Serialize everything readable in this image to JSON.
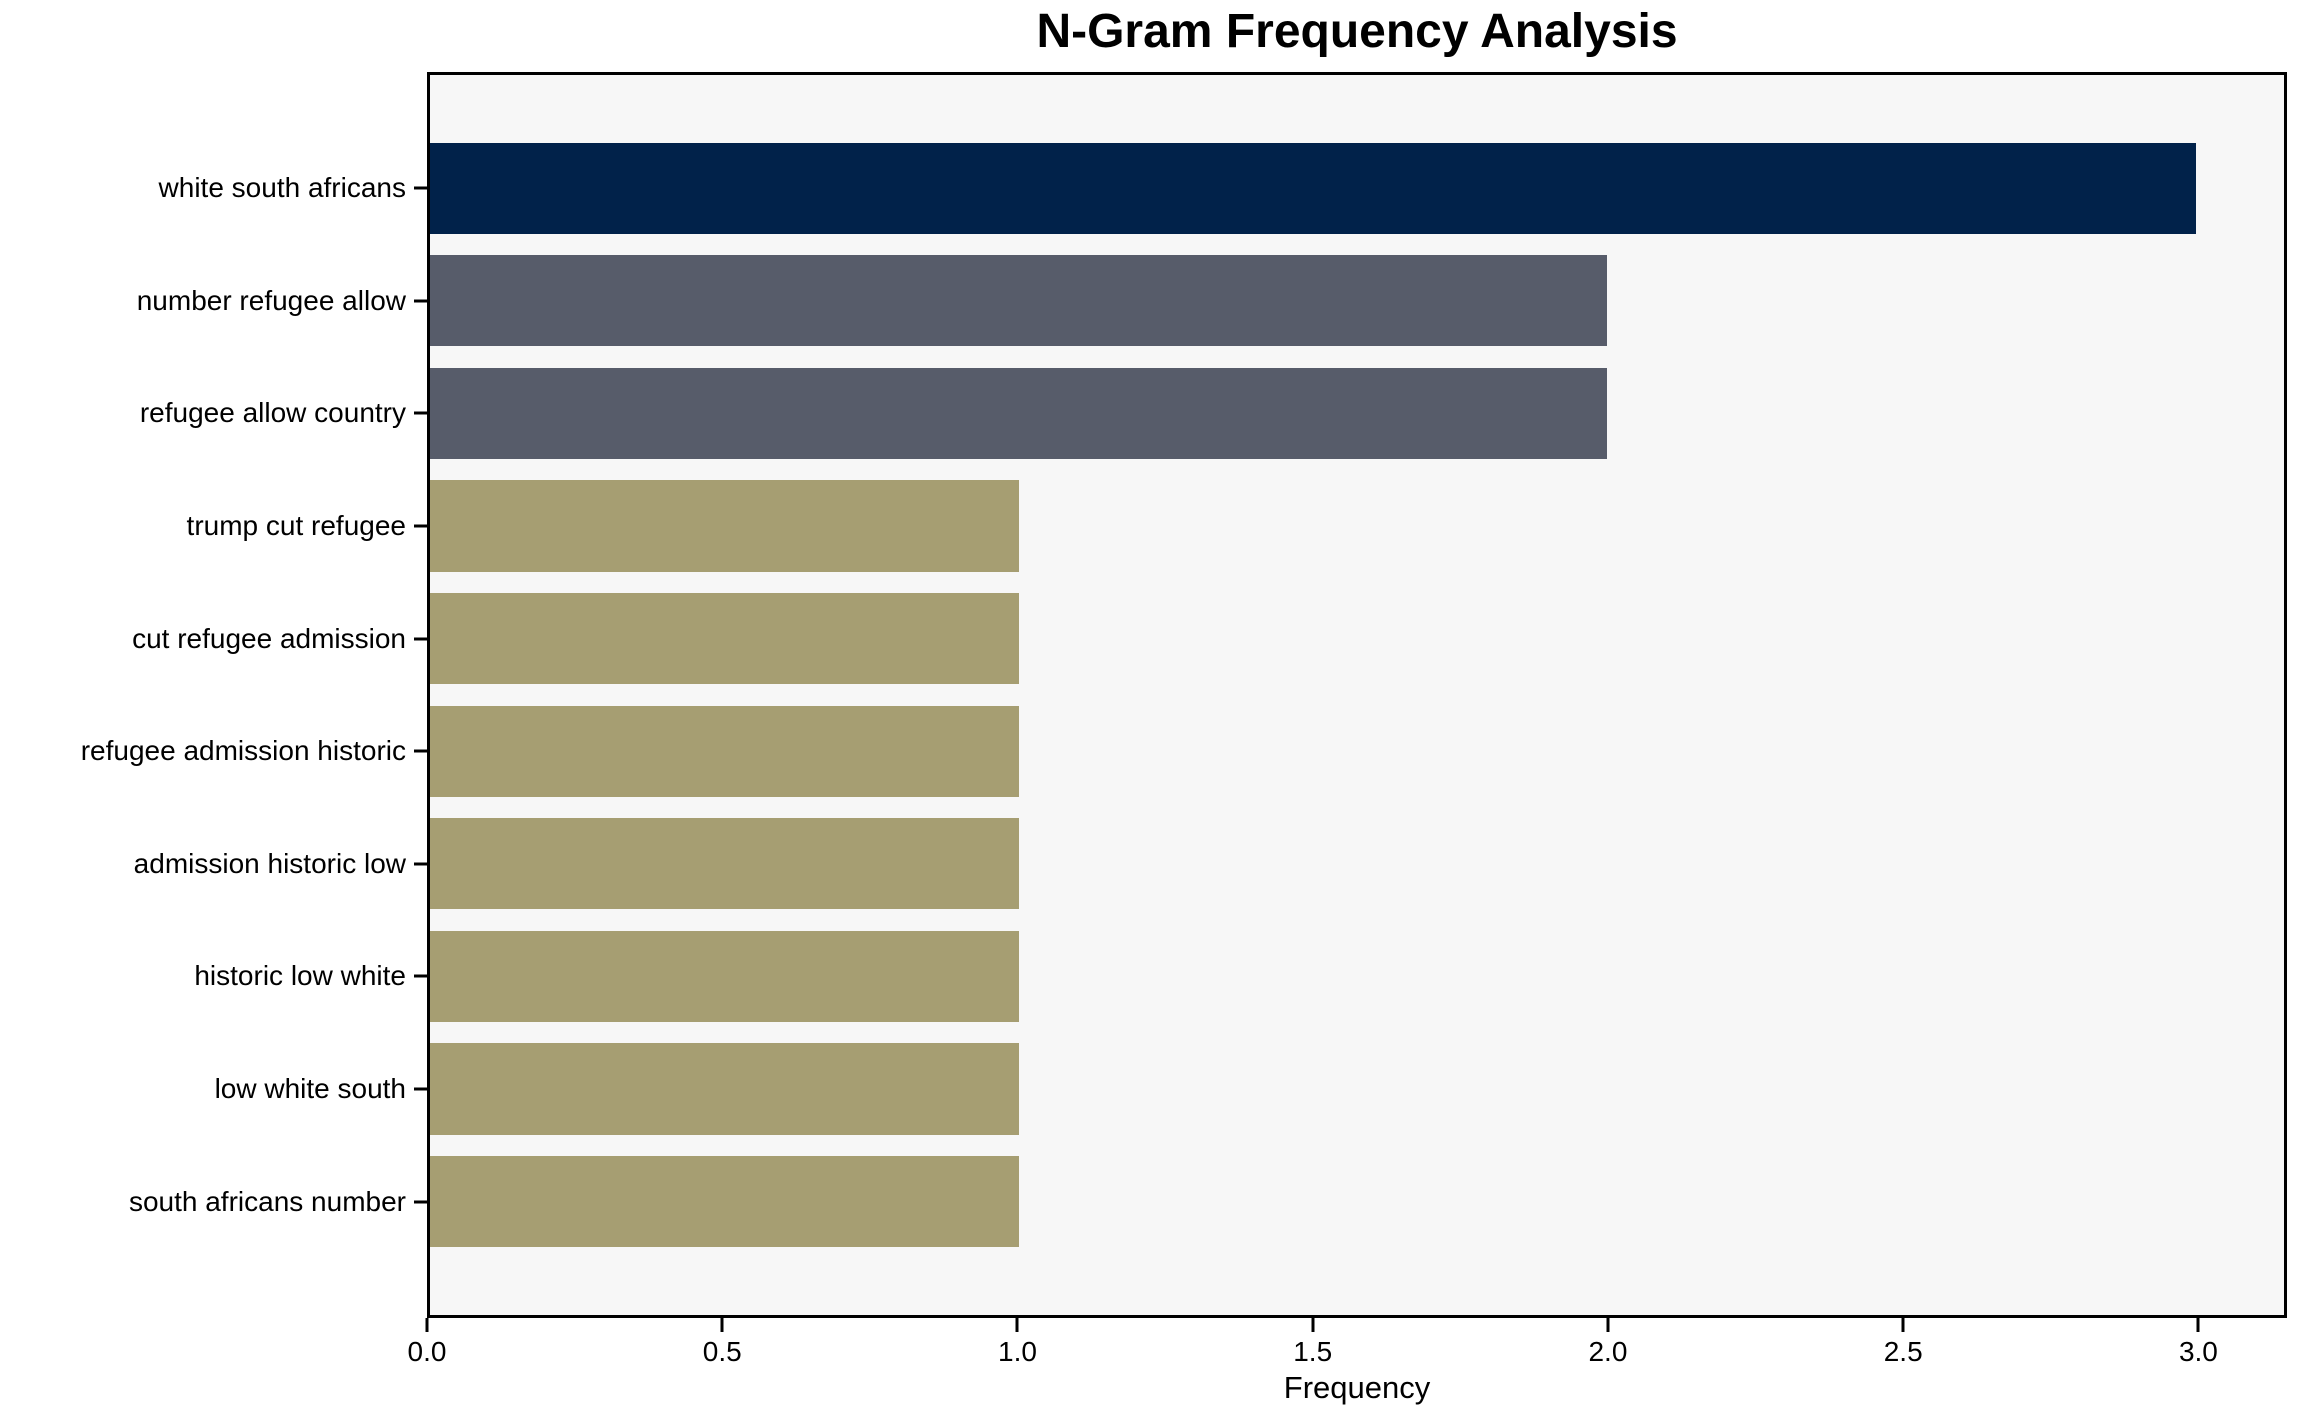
{
  "chart_data": {
    "type": "bar",
    "orientation": "horizontal",
    "title": "N-Gram Frequency Analysis",
    "xlabel": "Frequency",
    "ylabel": "",
    "categories": [
      "white south africans",
      "number refugee allow",
      "refugee allow country",
      "trump cut refugee",
      "cut refugee admission",
      "refugee admission historic",
      "admission historic low",
      "historic low white",
      "low white south",
      "south africans number"
    ],
    "values": [
      3,
      2,
      2,
      1,
      1,
      1,
      1,
      1,
      1,
      1
    ],
    "bar_colors": [
      "#01224a",
      "#575c6a",
      "#575c6a",
      "#a69e72",
      "#a69e72",
      "#a69e72",
      "#a69e72",
      "#a69e72",
      "#a69e72",
      "#a69e72"
    ],
    "xlim": [
      0,
      3.15
    ],
    "x_ticks": [
      0.0,
      0.5,
      1.0,
      1.5,
      2.0,
      2.5,
      3.0
    ],
    "x_tick_labels": [
      "0.0",
      "0.5",
      "1.0",
      "1.5",
      "2.0",
      "2.5",
      "3.0"
    ],
    "grid": false,
    "legend": null,
    "plot_bg": "#f7f7f7",
    "frame_color": "#000000"
  }
}
